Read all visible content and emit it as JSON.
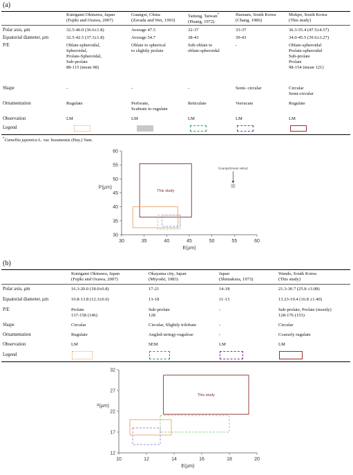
{
  "panel_a": {
    "label": "(a)",
    "columns": [
      {
        "h1": "Kunigami Okinawa, Japan",
        "h2": "(Fujiki and Ozawa, 2007)",
        "polar": "32.5-40.0 (36.6±1.8)",
        "equatorial": "32.5-42.5 (37.3±1.8)",
        "pe": "Oblate-spheroidal,\nSpheroidal,\nProlate-Spheroidal,\nSub-prolate\n88-115 (mean 98)",
        "shape": "-",
        "ornamentation": "Rugulate",
        "observation": "LM",
        "legend": "orange-dotted"
      },
      {
        "h1": "Guangxi, China",
        "h2": "(Zavada and Wei, 1993)",
        "polar": "Average 47.5",
        "equatorial": "Average 54.7",
        "pe": "Oblate to spherical\nto slightly prolate",
        "shape": "-",
        "ornamentation": "Perforate,\nScabrate to rugulate",
        "observation": "LM",
        "legend": "gray-filled"
      },
      {
        "h1": "Taitung, Taiwan",
        "h1_sup": "*",
        "h2": "(Huang, 1972)",
        "polar": "32-37",
        "equatorial": "38-43",
        "pe": "Sub-oblate to\noblate-spheroidal",
        "shape": "-",
        "ornamentation": "Reticulate",
        "observation": "LM",
        "legend": "green-dashdot"
      },
      {
        "h1": "Haenam, South Korea",
        "h2": "(Chang, 1986)",
        "polar": "33-37",
        "equatorial": "39-43",
        "pe": "-",
        "shape": "Semi- circular",
        "ornamentation": "Verrucate",
        "observation": "LM",
        "legend": "purple-dashed"
      },
      {
        "h1": "Mokpo, South Korea",
        "h2": "(This study)",
        "polar": "36.3-55.4 (47.5±4.57)",
        "equatorial": "34.0-45.5 (39.6±3.27)",
        "pe": "Oblate-spheroidal\nProlate-spheroidal\nSub-prolate\nProlate\n98-154 (mean 121)",
        "shape": "Circular\nSemi-circular",
        "ornamentation": "Rugulate",
        "observation": "LM",
        "legend": "darkred-solid"
      }
    ],
    "row_labels": {
      "polar": "Polar axis, µm",
      "equatorial": "Equatorial diameter, µm",
      "pe": "P/E",
      "shape": "Shape",
      "ornamentation": "Ornamentation",
      "observation": "Observation",
      "legend": "Legend"
    },
    "footnote_mark": "*",
    "footnote_italic": "Camellia japonica",
    "footnote_rest": " L. var. hozanensis (Hay.) Yam."
  },
  "panel_b": {
    "label": "(b)",
    "columns": [
      {
        "h1": "Kunigami Okinawa, Japan",
        "h2": "(Fujiki and Ozawa, 2007)",
        "polar": "16.3-20.0 (18.0±0.8)",
        "equatorial": "10.8-13.8 (12.3±0.6)",
        "pe": "Prolate\n137-158 (146)",
        "shape": "Circular",
        "ornamentation": "Rugulate",
        "observation": "LM",
        "legend": "orange-dotted"
      },
      {
        "h1": "Okayama city, Japan",
        "h2": "(Miyoshi, 1983)",
        "polar": "17-21",
        "equatorial": "13-18",
        "pe": "Sub-prolate\n128",
        "shape": "Circular, Slightly trilobate",
        "ornamentation": "Angled-stringy-rugulose",
        "observation": "SEM",
        "legend": "green-dashdot"
      },
      {
        "h1": "Japan",
        "h2": "(Shimakura, 1973)",
        "polar": "14-18",
        "equatorial": "11-13",
        "pe": "-",
        "shape": "-",
        "ornamentation": "-",
        "observation": "LM",
        "legend": "purple-dashed"
      },
      {
        "h1": "Wando, South Korea",
        "h2": "(This study)",
        "polar": "21.3-30.7 (25.8 ±3.08)",
        "equatorial": "13.23-19.4 (16.8 ±1.40)",
        "pe": "Sub-prolate, Prolate (mostly)\n128-176 (153)",
        "shape": "Circular",
        "ornamentation": "Coarsely rugulate",
        "observation": "LM",
        "legend": "darkred-solid"
      }
    ],
    "row_labels": {
      "polar": "Polar axis, µm",
      "equatorial": "Equatorial diameter, µm",
      "pe": "P/E",
      "shape": "Shape",
      "ornamentation": "Ornamentation",
      "observation": "Observation",
      "legend": "Legend"
    }
  },
  "legend_colors": {
    "orange": "#f0a060",
    "gray": "#c8c8c8",
    "green": "#2e9a3e",
    "purple": "#7a2e9c",
    "darkred": "#9b2b2b",
    "lightgreen": "#8fcf8f",
    "lightpurple": "#9a8cc8",
    "brown": "#8b2a2a"
  },
  "chart_data": [
    {
      "type": "scatter",
      "xlabel": "E(µm)",
      "ylabel": "P(µm)",
      "xlim": [
        30,
        60
      ],
      "ylim": [
        30,
        60
      ],
      "xticks": [
        30,
        35,
        40,
        45,
        50,
        55,
        60
      ],
      "yticks": [
        30,
        35,
        40,
        45,
        50,
        55,
        60
      ],
      "grid": false,
      "rectangles": [
        {
          "x": [
            34.0,
            45.5
          ],
          "y": [
            36.3,
            55.4
          ],
          "color": "brown",
          "style": "solid",
          "label": "This study"
        },
        {
          "x": [
            32.5,
            42.5
          ],
          "y": [
            32.5,
            40.0
          ],
          "color": "orange",
          "style": "solid"
        },
        {
          "x": [
            38,
            43
          ],
          "y": [
            32,
            37
          ],
          "color": "lightgreen",
          "style": "dashed"
        },
        {
          "x": [
            39,
            43
          ],
          "y": [
            33,
            37
          ],
          "color": "lightpurple",
          "style": "dashed"
        }
      ],
      "points": [
        {
          "x": 54.7,
          "y": 47.5,
          "color": "gray"
        }
      ],
      "annotation": {
        "text": "Guangxi(mean value)",
        "x": 54.7,
        "y": 47.5
      }
    },
    {
      "type": "scatter",
      "xlabel": "E(µm)",
      "ylabel": "P(µm)",
      "xlim": [
        10,
        20
      ],
      "ylim": [
        12,
        32
      ],
      "xticks": [
        10,
        12,
        14,
        16,
        18,
        20
      ],
      "yticks": [
        12,
        17,
        22,
        27,
        32
      ],
      "grid": false,
      "rectangles": [
        {
          "x": [
            13.23,
            19.4
          ],
          "y": [
            21.3,
            30.7
          ],
          "color": "brown",
          "style": "solid",
          "label": "This study"
        },
        {
          "x": [
            10.8,
            13.8
          ],
          "y": [
            16.3,
            20.0
          ],
          "color": "orange",
          "style": "solid"
        },
        {
          "x": [
            13,
            18
          ],
          "y": [
            17,
            21
          ],
          "color": "lightgreen",
          "style": "dashed"
        },
        {
          "x": [
            11,
            13
          ],
          "y": [
            14,
            18
          ],
          "color": "lightpurple",
          "style": "dashed"
        }
      ]
    }
  ]
}
